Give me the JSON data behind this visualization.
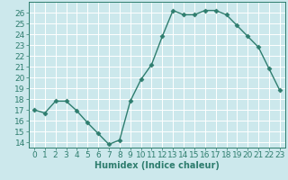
{
  "x": [
    0,
    1,
    2,
    3,
    4,
    5,
    6,
    7,
    8,
    9,
    10,
    11,
    12,
    13,
    14,
    15,
    16,
    17,
    18,
    19,
    20,
    21,
    22,
    23
  ],
  "y": [
    17.0,
    16.7,
    17.8,
    17.8,
    16.9,
    15.8,
    14.8,
    13.8,
    14.2,
    17.8,
    19.8,
    21.2,
    23.8,
    26.2,
    25.8,
    25.8,
    26.2,
    26.2,
    25.8,
    24.8,
    23.8,
    22.8,
    20.8,
    18.8
  ],
  "line_color": "#2e7d6e",
  "marker": "D",
  "markersize": 2.5,
  "linewidth": 1.0,
  "xlabel": "Humidex (Indice chaleur)",
  "xlim": [
    -0.5,
    23.5
  ],
  "ylim": [
    13.5,
    27.0
  ],
  "yticks": [
    14,
    15,
    16,
    17,
    18,
    19,
    20,
    21,
    22,
    23,
    24,
    25,
    26
  ],
  "xticks": [
    0,
    1,
    2,
    3,
    4,
    5,
    6,
    7,
    8,
    9,
    10,
    11,
    12,
    13,
    14,
    15,
    16,
    17,
    18,
    19,
    20,
    21,
    22,
    23
  ],
  "bg_color": "#cce8ec",
  "grid_color": "#ffffff",
  "tick_color": "#2e7d6e",
  "label_color": "#2e7d6e",
  "xlabel_fontsize": 7,
  "tick_fontsize": 6.5
}
